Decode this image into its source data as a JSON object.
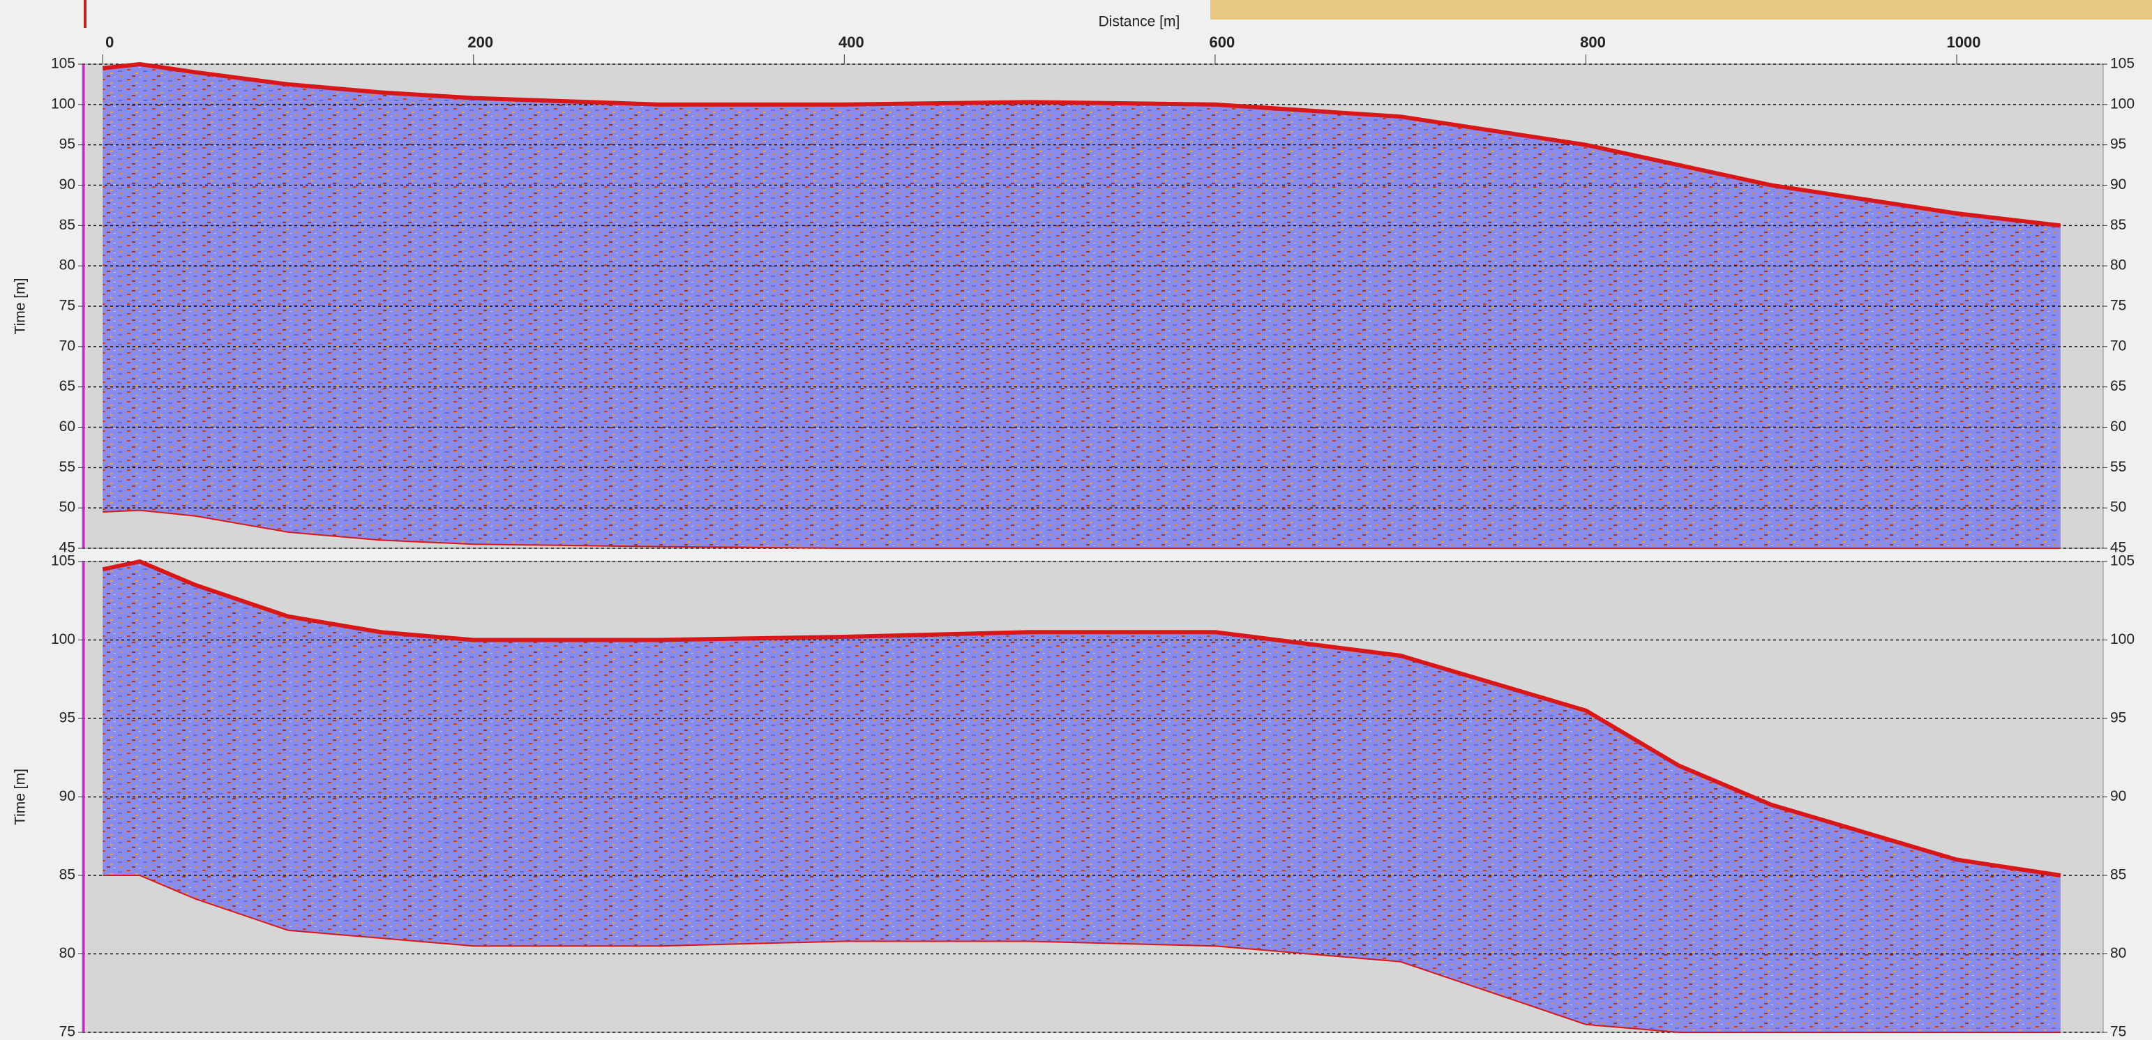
{
  "chart_data": [
    {
      "type": "radargram",
      "xlabel": "Distance [m]",
      "ylabel": "Time [m]",
      "xlim": [
        -11,
        1079
      ],
      "xticks": [
        0,
        200,
        400,
        600,
        800,
        1000
      ],
      "ylim": [
        45,
        105
      ],
      "yticks": [
        45,
        50,
        55,
        60,
        65,
        70,
        75,
        80,
        85,
        90,
        95,
        100,
        105
      ],
      "grid": true,
      "x": [
        0,
        20,
        50,
        100,
        150,
        200,
        300,
        400,
        500,
        600,
        700,
        800,
        850,
        900,
        1000,
        1056
      ],
      "series": [
        {
          "color": "#d81818",
          "values": [
            104.5,
            105,
            104,
            102.5,
            101.5,
            100.8,
            100,
            100,
            100.3,
            100,
            98.5,
            95,
            92.5,
            90,
            86.5,
            85
          ]
        },
        {
          "color": "#d81818",
          "values": [
            49.5,
            49.7,
            49,
            47,
            46,
            45.5,
            45.2,
            45,
            45,
            45,
            45,
            45,
            45,
            45,
            45,
            45
          ]
        }
      ]
    },
    {
      "type": "radargram",
      "ylabel": "Time [m]",
      "xlim": [
        -11,
        1079
      ],
      "ylim": [
        75,
        105
      ],
      "yticks": [
        75,
        80,
        85,
        90,
        95,
        100,
        105
      ],
      "grid": true,
      "x": [
        0,
        20,
        50,
        100,
        150,
        200,
        300,
        400,
        500,
        600,
        700,
        800,
        850,
        900,
        1000,
        1056
      ],
      "series": [
        {
          "color": "#d81818",
          "values": [
            104.5,
            105,
            103.5,
            101.5,
            100.5,
            100,
            100,
            100.2,
            100.5,
            100.5,
            99,
            95.5,
            92,
            89.5,
            86,
            85
          ]
        },
        {
          "color": "#d81818",
          "values": [
            85,
            85,
            83.5,
            81.5,
            81,
            80.5,
            80.5,
            80.8,
            80.8,
            80.5,
            79.5,
            75.5,
            75,
            75,
            75,
            75
          ]
        }
      ]
    }
  ]
}
